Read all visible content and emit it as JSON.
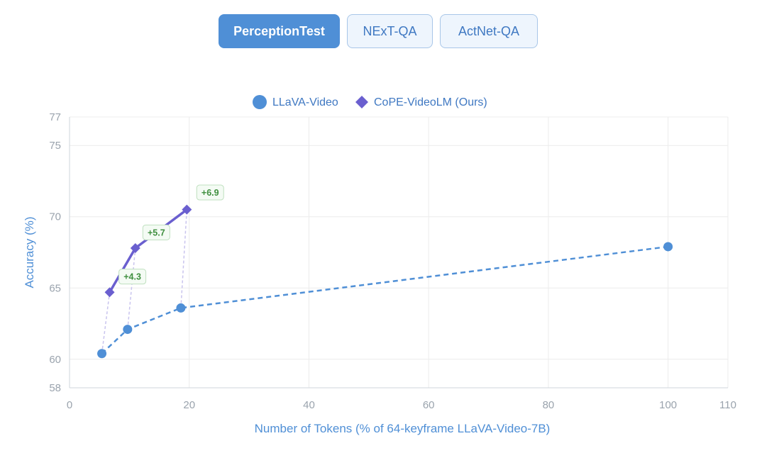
{
  "tabs": [
    {
      "label": "PerceptionTest",
      "active": true
    },
    {
      "label": "NExT-QA",
      "active": false
    },
    {
      "label": "ActNet-QA",
      "active": false
    }
  ],
  "colors": {
    "llava": "#4f8fd6",
    "cope": "#6a5fcf",
    "gain_text": "#3f8f3f",
    "gain_border": "#bfe0bf",
    "axis_text": "#9aa3ad",
    "axis_title": "#4f8fd6",
    "grid": "#ececec",
    "connector": "#c9c4ee"
  },
  "chart_data": {
    "type": "line",
    "xlabel": "Number of Tokens (% of 64-keyframe LLaVA-Video-7B)",
    "ylabel": "Accuracy (%)",
    "xlim": [
      0,
      110
    ],
    "ylim": [
      58,
      77
    ],
    "xticks": [
      0,
      20,
      40,
      60,
      80,
      100,
      110
    ],
    "yticks": [
      58,
      60,
      65,
      70,
      75,
      77
    ],
    "grid": true,
    "legend_position": "top-center",
    "series": [
      {
        "name": "LLaVA-Video",
        "marker": "circle",
        "line": "dashed",
        "x": [
          5.4,
          9.7,
          18.6,
          100
        ],
        "y": [
          60.4,
          62.1,
          63.6,
          67.9
        ]
      },
      {
        "name": "CoPE-VideoLM (Ours)",
        "marker": "diamond",
        "line": "solid",
        "x": [
          6.7,
          11.0,
          19.6
        ],
        "y": [
          64.7,
          67.8,
          70.5
        ]
      }
    ],
    "annotations": [
      {
        "text": "+4.3",
        "x": 10.5,
        "y": 65.8
      },
      {
        "text": "+5.7",
        "x": 14.5,
        "y": 68.9
      },
      {
        "text": "+6.9",
        "x": 23.5,
        "y": 71.7
      }
    ]
  }
}
